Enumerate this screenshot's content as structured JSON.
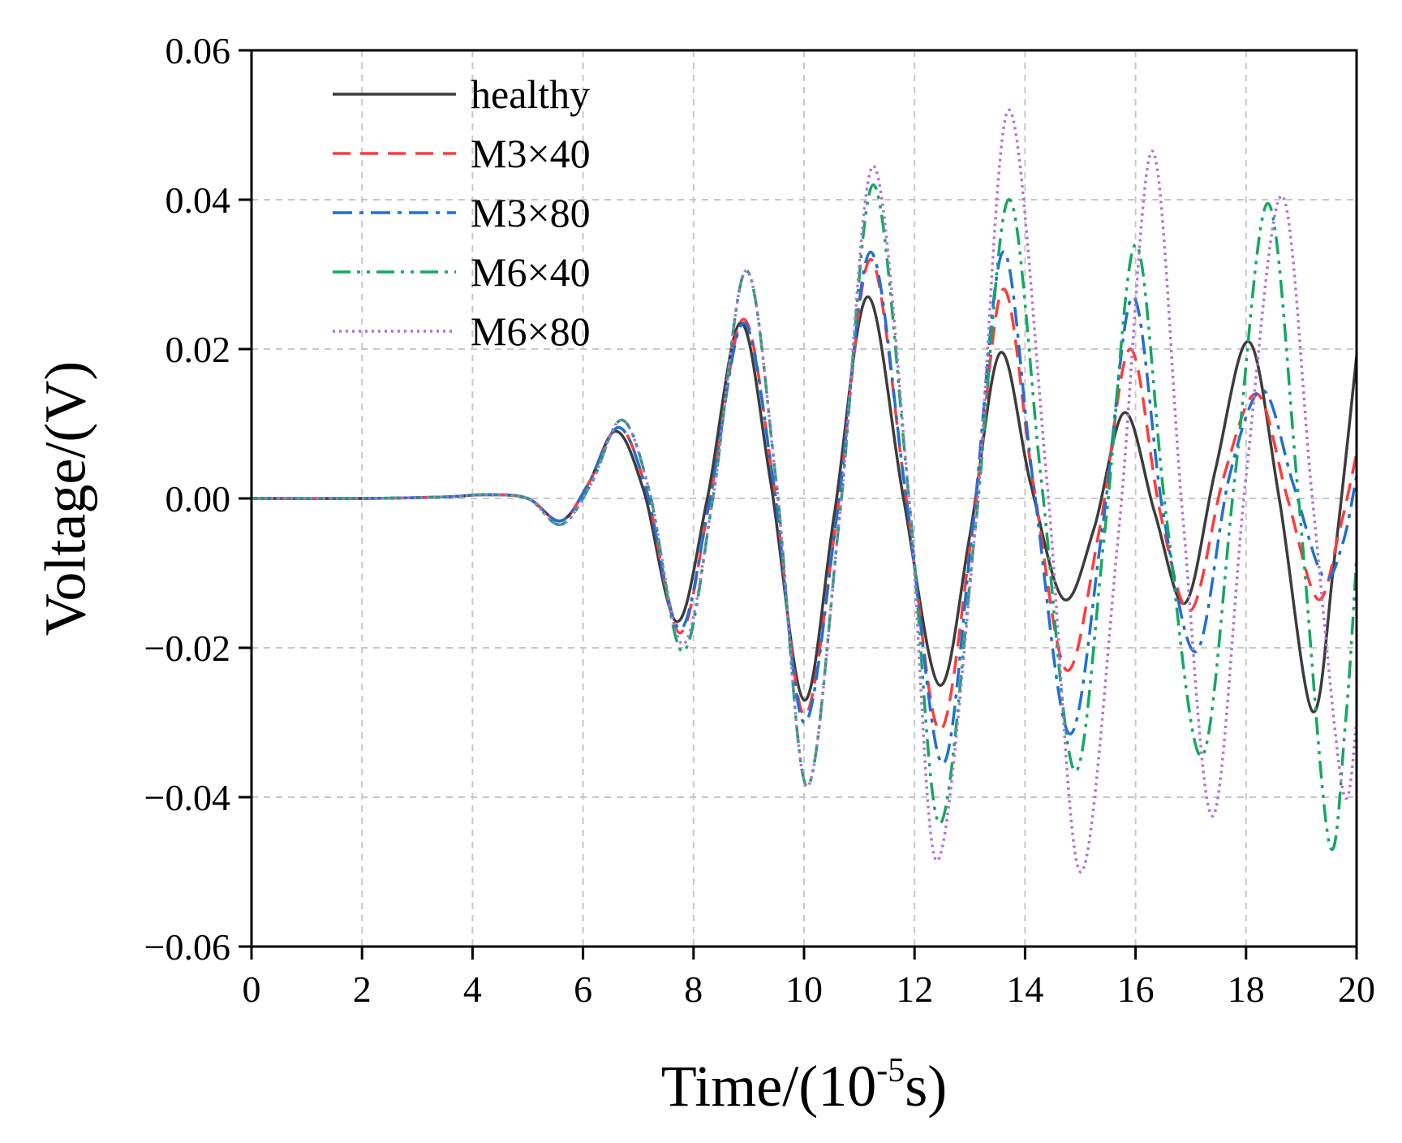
{
  "chart_data": {
    "type": "line",
    "title": "",
    "xlabel": "Time/(10",
    "xlabel_sup": "-5",
    "xlabel_tail": "s)",
    "ylabel": "Voltage/(V)",
    "xlim": [
      0,
      20
    ],
    "ylim": [
      -0.06,
      0.06
    ],
    "xticks": [
      0,
      2,
      4,
      6,
      8,
      10,
      12,
      14,
      16,
      18,
      20
    ],
    "yticks": [
      -0.06,
      -0.04,
      -0.02,
      0.0,
      0.02,
      0.04,
      0.06
    ],
    "ytick_labels": [
      "−0.06",
      "−0.04",
      "−0.02",
      "0.00",
      "0.02",
      "0.04",
      "0.06"
    ],
    "xtick_labels": [
      "0",
      "2",
      "4",
      "6",
      "8",
      "10",
      "12",
      "14",
      "16",
      "18",
      "20"
    ],
    "grid": true,
    "legend_position": "top-left",
    "series": [
      {
        "name": "healthy",
        "color": "#3c3c3c",
        "dash": "solid",
        "x": [
          0,
          2,
          3.5,
          4.25,
          5,
          5.6,
          6.1,
          6.6,
          7.1,
          7.7,
          8.25,
          8.85,
          9.4,
          10.0,
          10.55,
          11.15,
          11.8,
          12.45,
          13.0,
          13.55,
          14.1,
          14.7,
          15.25,
          15.8,
          16.35,
          16.9,
          17.45,
          18.05,
          18.6,
          19.2,
          19.6,
          20.0
        ],
        "y": [
          0,
          0,
          0.0002,
          0.0005,
          0,
          -0.003,
          0.002,
          0.009,
          0.001,
          -0.0165,
          0.0,
          0.0235,
          0.002,
          -0.027,
          -0.002,
          0.027,
          0.0,
          -0.025,
          -0.005,
          0.0195,
          0.002,
          -0.0135,
          -0.004,
          0.0115,
          -0.002,
          -0.014,
          0.004,
          0.021,
          0.0,
          -0.0285,
          -0.008,
          0.019
        ]
      },
      {
        "name": "M3×40",
        "color": "#ff3b3b",
        "dash": "dashed",
        "x": [
          0,
          2,
          3.5,
          4.25,
          5,
          5.6,
          6.1,
          6.65,
          7.15,
          7.75,
          8.3,
          8.9,
          9.45,
          10.0,
          10.6,
          11.2,
          11.85,
          12.45,
          13.05,
          13.6,
          14.15,
          14.75,
          15.35,
          15.9,
          16.45,
          17.0,
          17.6,
          18.2,
          18.75,
          19.3,
          19.7,
          20.0
        ],
        "y": [
          0,
          0,
          0.0002,
          0.0005,
          0,
          -0.003,
          0.002,
          0.0095,
          0.001,
          -0.018,
          0.0,
          0.024,
          0.002,
          -0.029,
          -0.002,
          0.032,
          0.0,
          -0.031,
          -0.004,
          0.028,
          0.002,
          -0.023,
          -0.004,
          0.02,
          -0.002,
          -0.015,
          0.003,
          0.014,
          0.0,
          -0.0135,
          -0.004,
          0.006
        ]
      },
      {
        "name": "M3×80",
        "color": "#1f6fd6",
        "dash": "dashdot",
        "x": [
          0,
          2,
          3.5,
          4.25,
          5,
          5.6,
          6.1,
          6.65,
          7.15,
          7.75,
          8.3,
          8.9,
          9.45,
          10.0,
          10.6,
          11.2,
          11.85,
          12.5,
          13.05,
          13.6,
          14.15,
          14.8,
          15.4,
          15.95,
          16.5,
          17.1,
          17.7,
          18.3,
          18.85,
          19.4,
          19.75,
          20.0
        ],
        "y": [
          0,
          0,
          0.0002,
          0.0005,
          0,
          -0.003,
          0.002,
          0.0095,
          0.001,
          -0.0175,
          0.0,
          0.0235,
          0.002,
          -0.03,
          -0.002,
          0.033,
          0.0,
          -0.0355,
          -0.004,
          0.033,
          0.002,
          -0.0315,
          -0.004,
          0.027,
          -0.002,
          -0.0205,
          0.003,
          0.0145,
          0.002,
          -0.0105,
          -0.006,
          0.003
        ]
      },
      {
        "name": "M6×40",
        "color": "#13a860",
        "dash": "dashdotdot",
        "x": [
          0,
          2,
          3.5,
          4.25,
          5,
          5.6,
          6.15,
          6.7,
          7.2,
          7.8,
          8.35,
          8.95,
          9.5,
          10.05,
          10.65,
          11.25,
          11.9,
          12.45,
          13.1,
          13.7,
          14.3,
          14.9,
          15.45,
          16.0,
          16.55,
          17.2,
          17.8,
          18.4,
          18.95,
          19.5,
          19.8,
          20.0
        ],
        "y": [
          0,
          0,
          0.0002,
          0.0005,
          0,
          -0.0035,
          0.002,
          0.0105,
          0.001,
          -0.0205,
          0.0,
          0.0305,
          0.002,
          -0.0385,
          -0.002,
          0.042,
          0.0,
          -0.0435,
          -0.004,
          0.04,
          0.002,
          -0.0365,
          -0.004,
          0.034,
          -0.002,
          -0.0345,
          0.003,
          0.0395,
          0.0,
          -0.046,
          -0.03,
          -0.008
        ]
      },
      {
        "name": "M6×80",
        "color": "#b36fe0",
        "dash": "dotted",
        "x": [
          0,
          2,
          3.5,
          4.25,
          5,
          5.6,
          6.15,
          6.7,
          7.2,
          7.8,
          8.35,
          8.95,
          9.5,
          10.05,
          10.65,
          11.25,
          11.9,
          12.4,
          13.1,
          13.7,
          14.4,
          15.0,
          15.7,
          16.3,
          16.85,
          17.4,
          18.0,
          18.65,
          19.2,
          19.75,
          20.0
        ],
        "y": [
          0,
          0,
          0.0002,
          0.0005,
          0,
          -0.0035,
          0.002,
          0.0105,
          0.001,
          -0.0195,
          0.0,
          0.0305,
          0.002,
          -0.0385,
          -0.002,
          0.0445,
          0.0,
          -0.0485,
          -0.004,
          0.052,
          0.002,
          -0.05,
          -0.004,
          0.0465,
          -0.002,
          -0.0425,
          0.003,
          0.0405,
          0.0,
          -0.039,
          -0.03
        ]
      }
    ]
  }
}
